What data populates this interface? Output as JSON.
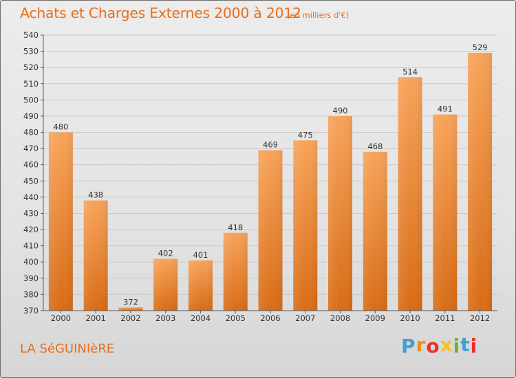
{
  "title": "Achats et Charges Externes 2000 à 2012",
  "subtitle": "(en milliers d'€)",
  "place": "LA SéGUINIèRE",
  "logo": {
    "letters": [
      "P",
      "r",
      "o",
      "x",
      "i",
      "t",
      "i"
    ],
    "colors": [
      "#3fa0d8",
      "#f28c1e",
      "#e9312c",
      "#f7c21c",
      "#6ab630",
      "#3fa0d8",
      "#e9312c"
    ]
  },
  "colors": {
    "accent": "#e96e1c",
    "bar_top": "#f7a35a",
    "bar_bottom": "#d86c16"
  },
  "chart_data": {
    "type": "bar",
    "title": "Achats et Charges Externes 2000 à 2012",
    "subtitle": "(en milliers d'€)",
    "categories": [
      "2000",
      "2001",
      "2002",
      "2003",
      "2004",
      "2005",
      "2006",
      "2007",
      "2008",
      "2009",
      "2010",
      "2011",
      "2012"
    ],
    "values": [
      480,
      438,
      372,
      402,
      401,
      418,
      469,
      475,
      490,
      468,
      514,
      491,
      529
    ],
    "ylim": [
      370,
      540
    ],
    "yticks": [
      370,
      380,
      390,
      400,
      410,
      420,
      430,
      440,
      450,
      460,
      470,
      480,
      490,
      500,
      510,
      520,
      530,
      540
    ],
    "grid": true,
    "legend": "none"
  }
}
